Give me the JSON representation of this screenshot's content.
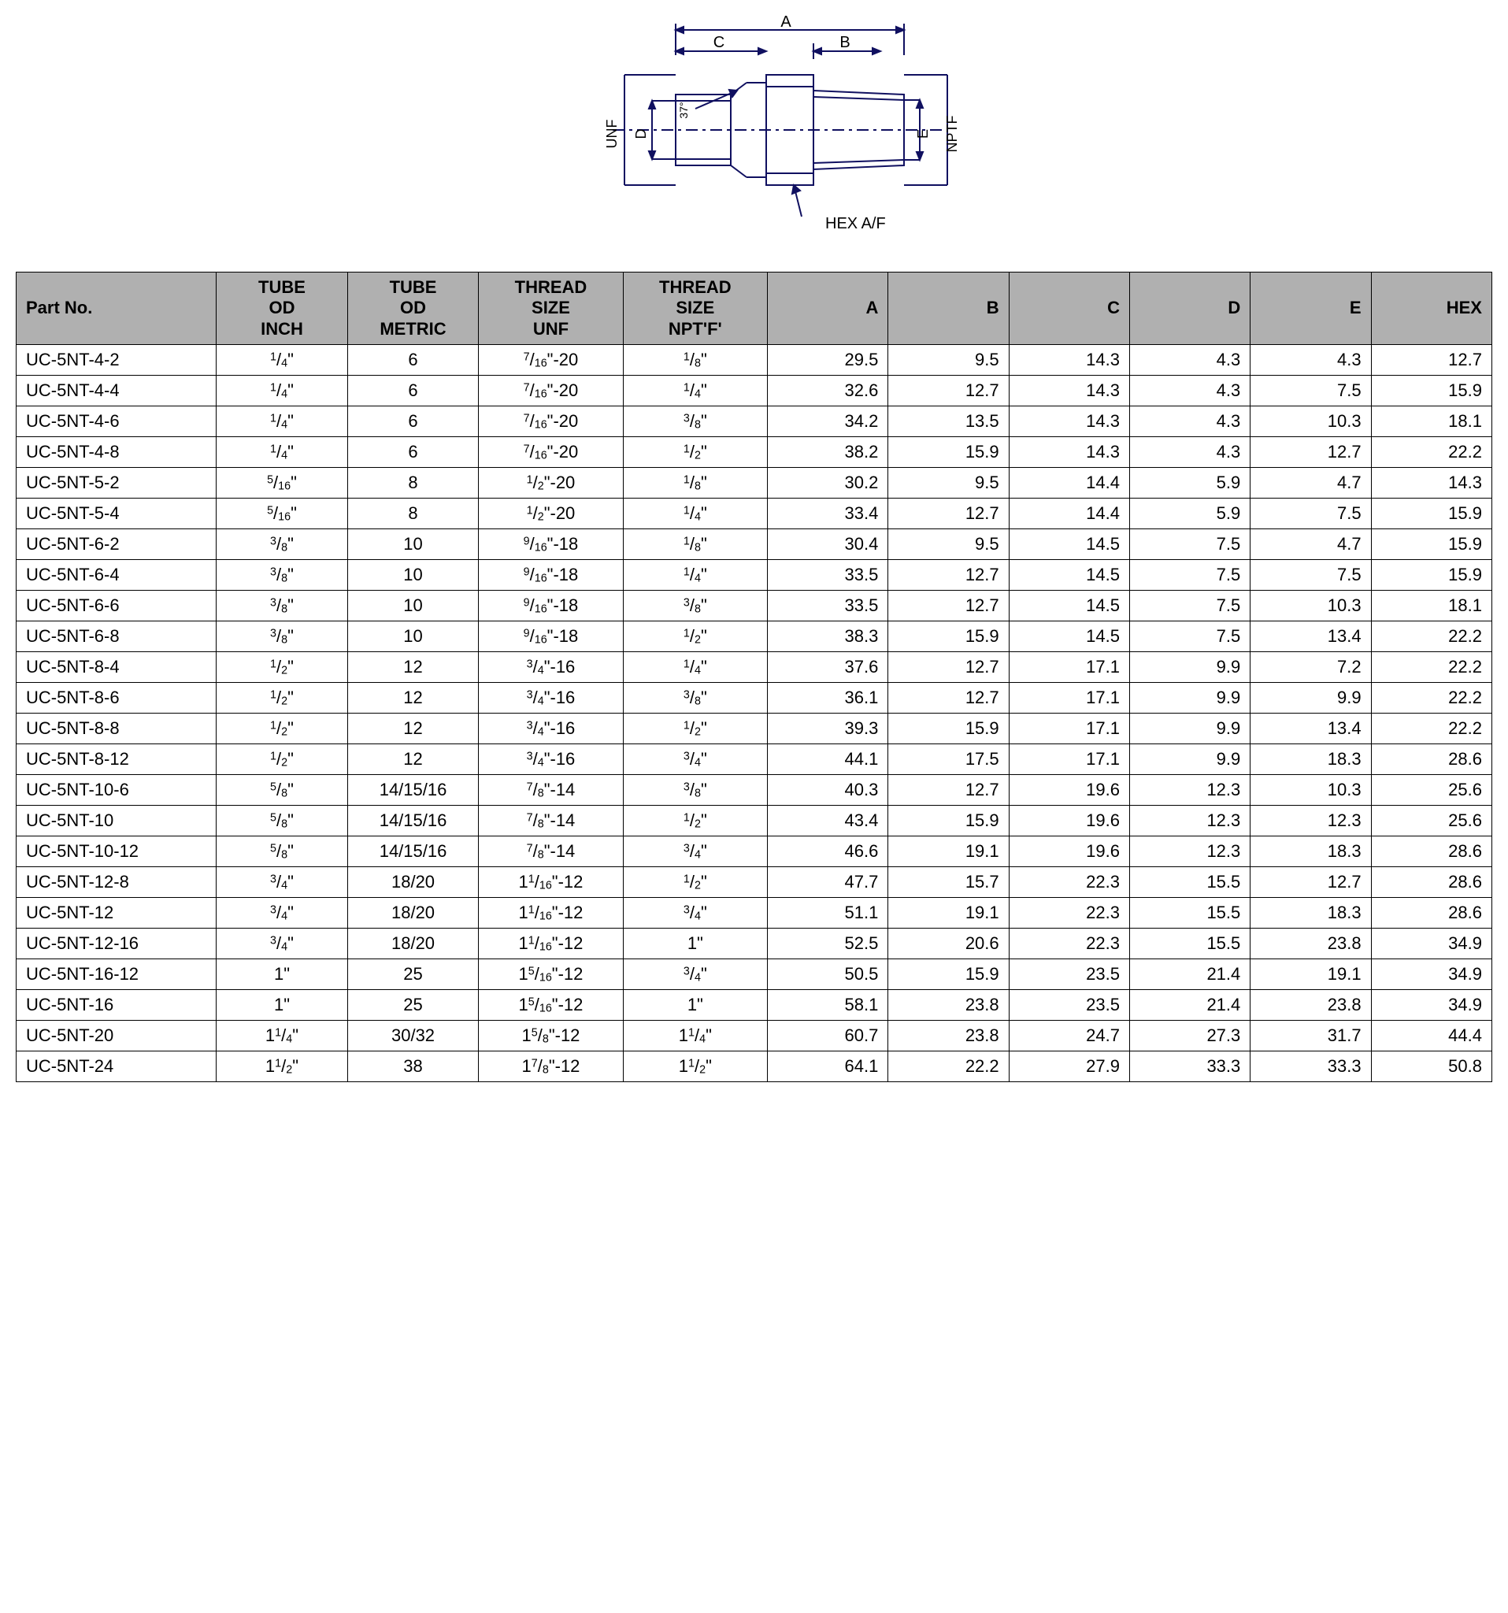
{
  "diagram": {
    "labels": {
      "A": "A",
      "B": "B",
      "C": "C",
      "D": "D",
      "E": "E",
      "UNF": "UNF",
      "NPTF": "NPTF",
      "angle": "37°",
      "hex": "HEX A/F"
    },
    "stroke_color": "#101060",
    "stroke_width": 2
  },
  "table": {
    "header_bg": "#b0b0b0",
    "border_color": "#000000",
    "columns": [
      {
        "key": "part",
        "label": "Part No.",
        "align": "left"
      },
      {
        "key": "tube_in",
        "label": "TUBE\nOD\nINCH",
        "align": "center"
      },
      {
        "key": "tube_mm",
        "label": "TUBE\nOD\nMETRIC",
        "align": "center"
      },
      {
        "key": "unf",
        "label": "THREAD\nSIZE\nUNF",
        "align": "center"
      },
      {
        "key": "npt",
        "label": "THREAD\nSIZE\nNPT'F'",
        "align": "center"
      },
      {
        "key": "A",
        "label": "A",
        "align": "right"
      },
      {
        "key": "B",
        "label": "B",
        "align": "right"
      },
      {
        "key": "C",
        "label": "C",
        "align": "right"
      },
      {
        "key": "D",
        "label": "D",
        "align": "right"
      },
      {
        "key": "E",
        "label": "E",
        "align": "right"
      },
      {
        "key": "HEX",
        "label": "HEX",
        "align": "right"
      }
    ],
    "rows": [
      {
        "part": "UC-5NT-4-2",
        "tube_in": {
          "n": "1",
          "d": "4",
          "s": "\""
        },
        "tube_mm": "6",
        "unf": {
          "n": "7",
          "d": "16",
          "s": "\"-20"
        },
        "npt": {
          "n": "1",
          "d": "8",
          "s": "\""
        },
        "A": "29.5",
        "B": "9.5",
        "C": "14.3",
        "D": "4.3",
        "E": "4.3",
        "HEX": "12.7"
      },
      {
        "part": "UC-5NT-4-4",
        "tube_in": {
          "n": "1",
          "d": "4",
          "s": "\""
        },
        "tube_mm": "6",
        "unf": {
          "n": "7",
          "d": "16",
          "s": "\"-20"
        },
        "npt": {
          "n": "1",
          "d": "4",
          "s": "\""
        },
        "A": "32.6",
        "B": "12.7",
        "C": "14.3",
        "D": "4.3",
        "E": "7.5",
        "HEX": "15.9"
      },
      {
        "part": "UC-5NT-4-6",
        "tube_in": {
          "n": "1",
          "d": "4",
          "s": "\""
        },
        "tube_mm": "6",
        "unf": {
          "n": "7",
          "d": "16",
          "s": "\"-20"
        },
        "npt": {
          "n": "3",
          "d": "8",
          "s": "\""
        },
        "A": "34.2",
        "B": "13.5",
        "C": "14.3",
        "D": "4.3",
        "E": "10.3",
        "HEX": "18.1"
      },
      {
        "part": "UC-5NT-4-8",
        "tube_in": {
          "n": "1",
          "d": "4",
          "s": "\""
        },
        "tube_mm": "6",
        "unf": {
          "n": "7",
          "d": "16",
          "s": "\"-20"
        },
        "npt": {
          "n": "1",
          "d": "2",
          "s": "\""
        },
        "A": "38.2",
        "B": "15.9",
        "C": "14.3",
        "D": "4.3",
        "E": "12.7",
        "HEX": "22.2"
      },
      {
        "part": "UC-5NT-5-2",
        "tube_in": {
          "n": "5",
          "d": "16",
          "s": "\""
        },
        "tube_mm": "8",
        "unf": {
          "n": "1",
          "d": "2",
          "s": "\"-20"
        },
        "npt": {
          "n": "1",
          "d": "8",
          "s": "\""
        },
        "A": "30.2",
        "B": "9.5",
        "C": "14.4",
        "D": "5.9",
        "E": "4.7",
        "HEX": "14.3"
      },
      {
        "part": "UC-5NT-5-4",
        "tube_in": {
          "n": "5",
          "d": "16",
          "s": "\""
        },
        "tube_mm": "8",
        "unf": {
          "n": "1",
          "d": "2",
          "s": "\"-20"
        },
        "npt": {
          "n": "1",
          "d": "4",
          "s": "\""
        },
        "A": "33.4",
        "B": "12.7",
        "C": "14.4",
        "D": "5.9",
        "E": "7.5",
        "HEX": "15.9"
      },
      {
        "part": "UC-5NT-6-2",
        "tube_in": {
          "n": "3",
          "d": "8",
          "s": "\""
        },
        "tube_mm": "10",
        "unf": {
          "n": "9",
          "d": "16",
          "s": "\"-18"
        },
        "npt": {
          "n": "1",
          "d": "8",
          "s": "\""
        },
        "A": "30.4",
        "B": "9.5",
        "C": "14.5",
        "D": "7.5",
        "E": "4.7",
        "HEX": "15.9"
      },
      {
        "part": "UC-5NT-6-4",
        "tube_in": {
          "n": "3",
          "d": "8",
          "s": "\""
        },
        "tube_mm": "10",
        "unf": {
          "n": "9",
          "d": "16",
          "s": "\"-18"
        },
        "npt": {
          "n": "1",
          "d": "4",
          "s": "\""
        },
        "A": "33.5",
        "B": "12.7",
        "C": "14.5",
        "D": "7.5",
        "E": "7.5",
        "HEX": "15.9"
      },
      {
        "part": "UC-5NT-6-6",
        "tube_in": {
          "n": "3",
          "d": "8",
          "s": "\""
        },
        "tube_mm": "10",
        "unf": {
          "n": "9",
          "d": "16",
          "s": "\"-18"
        },
        "npt": {
          "n": "3",
          "d": "8",
          "s": "\""
        },
        "A": "33.5",
        "B": "12.7",
        "C": "14.5",
        "D": "7.5",
        "E": "10.3",
        "HEX": "18.1"
      },
      {
        "part": "UC-5NT-6-8",
        "tube_in": {
          "n": "3",
          "d": "8",
          "s": "\""
        },
        "tube_mm": "10",
        "unf": {
          "n": "9",
          "d": "16",
          "s": "\"-18"
        },
        "npt": {
          "n": "1",
          "d": "2",
          "s": "\""
        },
        "A": "38.3",
        "B": "15.9",
        "C": "14.5",
        "D": "7.5",
        "E": "13.4",
        "HEX": "22.2"
      },
      {
        "part": "UC-5NT-8-4",
        "tube_in": {
          "n": "1",
          "d": "2",
          "s": "\""
        },
        "tube_mm": "12",
        "unf": {
          "n": "3",
          "d": "4",
          "s": "\"-16"
        },
        "npt": {
          "n": "1",
          "d": "4",
          "s": "\""
        },
        "A": "37.6",
        "B": "12.7",
        "C": "17.1",
        "D": "9.9",
        "E": "7.2",
        "HEX": "22.2"
      },
      {
        "part": "UC-5NT-8-6",
        "tube_in": {
          "n": "1",
          "d": "2",
          "s": "\""
        },
        "tube_mm": "12",
        "unf": {
          "n": "3",
          "d": "4",
          "s": "\"-16"
        },
        "npt": {
          "n": "3",
          "d": "8",
          "s": "\""
        },
        "A": "36.1",
        "B": "12.7",
        "C": "17.1",
        "D": "9.9",
        "E": "9.9",
        "HEX": "22.2"
      },
      {
        "part": "UC-5NT-8-8",
        "tube_in": {
          "n": "1",
          "d": "2",
          "s": "\""
        },
        "tube_mm": "12",
        "unf": {
          "n": "3",
          "d": "4",
          "s": "\"-16"
        },
        "npt": {
          "n": "1",
          "d": "2",
          "s": "\""
        },
        "A": "39.3",
        "B": "15.9",
        "C": "17.1",
        "D": "9.9",
        "E": "13.4",
        "HEX": "22.2"
      },
      {
        "part": "UC-5NT-8-12",
        "tube_in": {
          "n": "1",
          "d": "2",
          "s": "\""
        },
        "tube_mm": "12",
        "unf": {
          "n": "3",
          "d": "4",
          "s": "\"-16"
        },
        "npt": {
          "n": "3",
          "d": "4",
          "s": "\""
        },
        "A": "44.1",
        "B": "17.5",
        "C": "17.1",
        "D": "9.9",
        "E": "18.3",
        "HEX": "28.6"
      },
      {
        "part": "UC-5NT-10-6",
        "tube_in": {
          "n": "5",
          "d": "8",
          "s": "\""
        },
        "tube_mm": "14/15/16",
        "unf": {
          "n": "7",
          "d": "8",
          "s": "\"-14"
        },
        "npt": {
          "n": "3",
          "d": "8",
          "s": "\""
        },
        "A": "40.3",
        "B": "12.7",
        "C": "19.6",
        "D": "12.3",
        "E": "10.3",
        "HEX": "25.6"
      },
      {
        "part": "UC-5NT-10",
        "tube_in": {
          "n": "5",
          "d": "8",
          "s": "\""
        },
        "tube_mm": "14/15/16",
        "unf": {
          "n": "7",
          "d": "8",
          "s": "\"-14"
        },
        "npt": {
          "n": "1",
          "d": "2",
          "s": "\""
        },
        "A": "43.4",
        "B": "15.9",
        "C": "19.6",
        "D": "12.3",
        "E": "12.3",
        "HEX": "25.6"
      },
      {
        "part": "UC-5NT-10-12",
        "tube_in": {
          "n": "5",
          "d": "8",
          "s": "\""
        },
        "tube_mm": "14/15/16",
        "unf": {
          "n": "7",
          "d": "8",
          "s": "\"-14"
        },
        "npt": {
          "n": "3",
          "d": "4",
          "s": "\""
        },
        "A": "46.6",
        "B": "19.1",
        "C": "19.6",
        "D": "12.3",
        "E": "18.3",
        "HEX": "28.6"
      },
      {
        "part": "UC-5NT-12-8",
        "tube_in": {
          "n": "3",
          "d": "4",
          "s": "\""
        },
        "tube_mm": "18/20",
        "unf": {
          "w": "1",
          "n": "1",
          "d": "16",
          "s": "\"-12"
        },
        "npt": {
          "n": "1",
          "d": "2",
          "s": "\""
        },
        "A": "47.7",
        "B": "15.7",
        "C": "22.3",
        "D": "15.5",
        "E": "12.7",
        "HEX": "28.6"
      },
      {
        "part": "UC-5NT-12",
        "tube_in": {
          "n": "3",
          "d": "4",
          "s": "\""
        },
        "tube_mm": "18/20",
        "unf": {
          "w": "1",
          "n": "1",
          "d": "16",
          "s": "\"-12"
        },
        "npt": {
          "n": "3",
          "d": "4",
          "s": "\""
        },
        "A": "51.1",
        "B": "19.1",
        "C": "22.3",
        "D": "15.5",
        "E": "18.3",
        "HEX": "28.6"
      },
      {
        "part": "UC-5NT-12-16",
        "tube_in": {
          "n": "3",
          "d": "4",
          "s": "\""
        },
        "tube_mm": "18/20",
        "unf": {
          "w": "1",
          "n": "1",
          "d": "16",
          "s": "\"-12"
        },
        "npt": {
          "plain": "1\""
        },
        "A": "52.5",
        "B": "20.6",
        "C": "22.3",
        "D": "15.5",
        "E": "23.8",
        "HEX": "34.9"
      },
      {
        "part": "UC-5NT-16-12",
        "tube_in": {
          "plain": "1\""
        },
        "tube_mm": "25",
        "unf": {
          "w": "1",
          "n": "5",
          "d": "16",
          "s": "\"-12"
        },
        "npt": {
          "n": "3",
          "d": "4",
          "s": "\""
        },
        "A": "50.5",
        "B": "15.9",
        "C": "23.5",
        "D": "21.4",
        "E": "19.1",
        "HEX": "34.9"
      },
      {
        "part": "UC-5NT-16",
        "tube_in": {
          "plain": "1\""
        },
        "tube_mm": "25",
        "unf": {
          "w": "1",
          "n": "5",
          "d": "16",
          "s": "\"-12"
        },
        "npt": {
          "plain": "1\""
        },
        "A": "58.1",
        "B": "23.8",
        "C": "23.5",
        "D": "21.4",
        "E": "23.8",
        "HEX": "34.9"
      },
      {
        "part": "UC-5NT-20",
        "tube_in": {
          "w": "1",
          "n": "1",
          "d": "4",
          "s": "\""
        },
        "tube_mm": "30/32",
        "unf": {
          "w": "1",
          "n": "5",
          "d": "8",
          "s": "\"-12"
        },
        "npt": {
          "w": "1",
          "n": "1",
          "d": "4",
          "s": "\""
        },
        "A": "60.7",
        "B": "23.8",
        "C": "24.7",
        "D": "27.3",
        "E": "31.7",
        "HEX": "44.4"
      },
      {
        "part": "UC-5NT-24",
        "tube_in": {
          "w": "1",
          "n": "1",
          "d": "2",
          "s": "\""
        },
        "tube_mm": "38",
        "unf": {
          "w": "1",
          "n": "7",
          "d": "8",
          "s": "\"-12"
        },
        "npt": {
          "w": "1",
          "n": "1",
          "d": "2",
          "s": "\""
        },
        "A": "64.1",
        "B": "22.2",
        "C": "27.9",
        "D": "33.3",
        "E": "33.3",
        "HEX": "50.8"
      }
    ]
  }
}
